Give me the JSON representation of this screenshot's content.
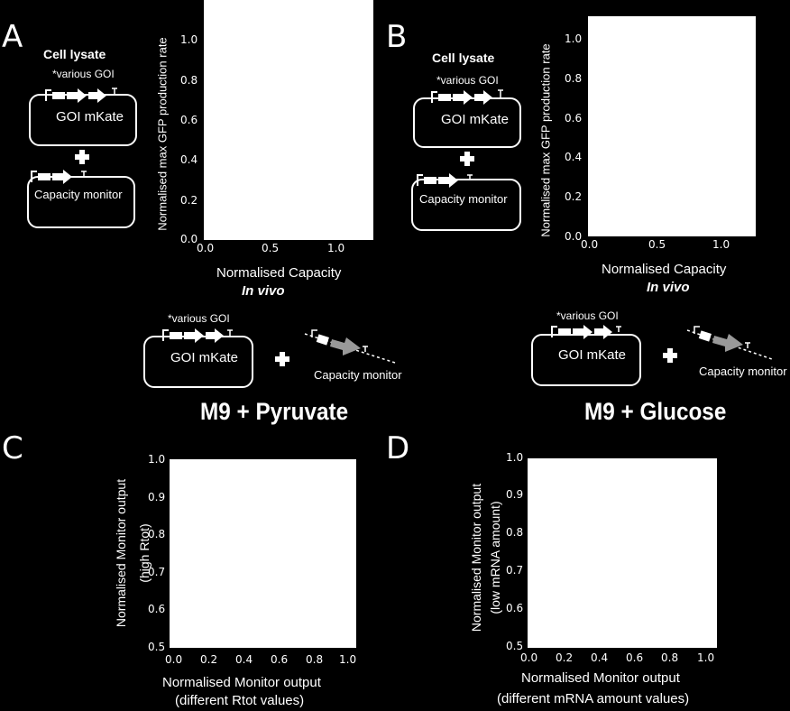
{
  "panels": {
    "A": "A",
    "B": "B",
    "C": "C",
    "D": "D"
  },
  "cell_lysate_label": "Cell lysate",
  "goi_various": "*various GOI",
  "goi_mkate": "GOI mKate",
  "capacity_monitor": "Capacity monitor",
  "in_vivo": "In vivo",
  "media": {
    "pyruvate": "M9 + Pyruvate",
    "glucose": "M9 + Glucose"
  },
  "plot_a": {
    "ylabel": "Normalised max GFP production rate",
    "xlabel": "Normalised Capacity",
    "yticks": [
      "0.0",
      "0.2",
      "0.4",
      "0.6",
      "0.8",
      "1.0"
    ],
    "xticks": [
      "0.0",
      "0.5",
      "1.0"
    ]
  },
  "plot_b": {
    "ylabel": "Normalised max GFP production rate",
    "xlabel": "Normalised Capacity",
    "yticks": [
      "0.0",
      "0.2",
      "0.4",
      "0.6",
      "0.8",
      "1.0"
    ],
    "xticks": [
      "0.0",
      "0.5",
      "1.0"
    ]
  },
  "plot_c": {
    "ylabel_1": "Normalised Monitor output",
    "ylabel_2": "(high Rtot)",
    "xlabel_1": "Normalised Monitor output",
    "xlabel_2": "(different Rtot values)",
    "yticks": [
      "0.5",
      "0.6",
      "0.7",
      "0.8",
      "0.9",
      "1.0"
    ],
    "xticks": [
      "0.0",
      "0.2",
      "0.4",
      "0.6",
      "0.8",
      "1.0"
    ]
  },
  "plot_d": {
    "ylabel_1": "Normalised Monitor output",
    "ylabel_2": "(low mRNA amount)",
    "xlabel_1": "Normalised Monitor output",
    "xlabel_2": "(different mRNA amount values)",
    "yticks": [
      "0.5",
      "0.6",
      "0.7",
      "0.8",
      "0.9",
      "1.0"
    ],
    "xticks": [
      "0.0",
      "0.2",
      "0.4",
      "0.6",
      "0.8",
      "1.0"
    ]
  }
}
